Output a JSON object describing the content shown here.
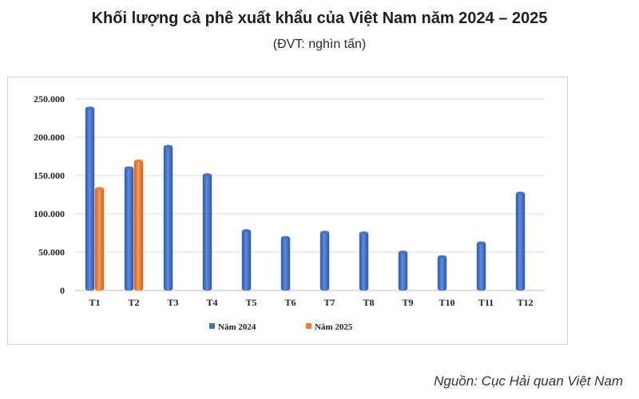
{
  "title": "Khối lượng cà phê xuất khẩu của Việt Nam năm 2024 – 2025",
  "subtitle": "(ĐVT: nghìn tấn)",
  "source": "Nguồn: Cục Hải quan Việt Nam",
  "chart_data": {
    "type": "bar",
    "categories": [
      "T1",
      "T2",
      "T3",
      "T4",
      "T5",
      "T6",
      "T7",
      "T8",
      "T9",
      "T10",
      "T11",
      "T12"
    ],
    "series": [
      {
        "name": "Năm 2024",
        "color": "#4472c4",
        "values": [
          239000,
          161000,
          189000,
          152000,
          79000,
          70000,
          77000,
          76000,
          51000,
          45000,
          63000,
          128000
        ]
      },
      {
        "name": "Năm 2025",
        "color": "#ed7d31",
        "values": [
          134000,
          170000,
          null,
          null,
          null,
          null,
          null,
          null,
          null,
          null,
          null,
          null
        ]
      }
    ],
    "yticks": [
      "0",
      "50.000",
      "100.000",
      "150.000",
      "200.000",
      "250.000"
    ],
    "ylim": [
      0,
      250000
    ],
    "grid": true,
    "legend_position": "bottom"
  }
}
